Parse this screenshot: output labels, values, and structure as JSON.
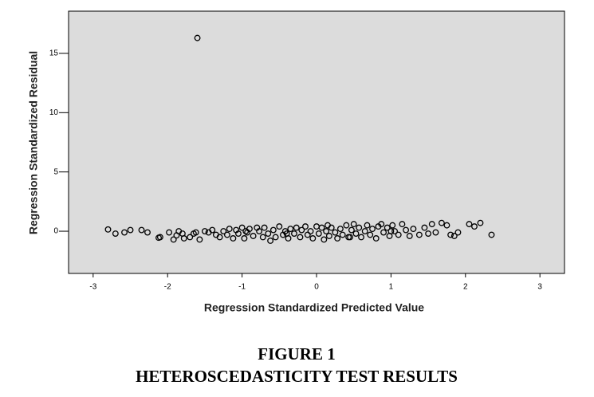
{
  "chart_data": {
    "type": "scatter",
    "x_label": "Regression Standardized Predicted Value",
    "y_label": "Regression Standardized Residual",
    "figure_label": "FIGURE 1",
    "caption": "HETEROSCEDASTICITY TEST RESULTS",
    "xlim": [
      -3.33,
      3.33
    ],
    "ylim": [
      -3.56,
      18.56
    ],
    "xticks": [
      -3,
      -2,
      -1,
      0,
      1,
      2,
      3
    ],
    "yticks": [
      0,
      5,
      10,
      15
    ],
    "color": "#000000",
    "background": "#dcdcdc",
    "x": [
      -2.8,
      -2.7,
      -2.58,
      -2.5,
      -2.35,
      -2.27,
      -2.12,
      -2.1,
      -1.98,
      -1.92,
      -1.88,
      -1.85,
      -1.8,
      -1.78,
      -1.7,
      -1.65,
      -1.62,
      -1.6,
      -1.57,
      -1.5,
      -1.45,
      -1.4,
      -1.35,
      -1.3,
      -1.25,
      -1.2,
      -1.17,
      -1.12,
      -1.08,
      -1.05,
      -1.0,
      -0.97,
      -0.93,
      -0.9,
      -0.85,
      -0.8,
      -0.77,
      -0.72,
      -0.7,
      -0.65,
      -0.62,
      -0.58,
      -0.55,
      -0.5,
      -0.45,
      -0.42,
      -0.38,
      -0.35,
      -0.3,
      -0.27,
      -0.22,
      -0.2,
      -0.15,
      -0.12,
      -0.08,
      -0.05,
      0.0,
      0.03,
      0.07,
      0.1,
      0.13,
      0.17,
      0.2,
      0.25,
      0.28,
      0.32,
      0.35,
      0.4,
      0.43,
      0.47,
      0.5,
      0.53,
      0.57,
      0.6,
      0.65,
      0.68,
      0.72,
      0.75,
      0.8,
      0.83,
      0.87,
      0.9,
      0.95,
      0.98,
      1.02,
      1.05,
      1.1,
      1.15,
      1.2,
      1.25,
      1.3,
      1.38,
      1.45,
      1.5,
      1.55,
      1.6,
      1.68,
      1.75,
      1.8,
      1.85,
      1.9,
      2.05,
      2.12,
      2.2,
      2.35,
      -0.4,
      0.15,
      0.45,
      -0.95,
      1.0
    ],
    "values": [
      0.15,
      -0.2,
      -0.1,
      0.1,
      0.1,
      -0.1,
      -0.55,
      -0.5,
      -0.1,
      -0.7,
      -0.35,
      0.0,
      -0.2,
      -0.6,
      -0.5,
      -0.2,
      -0.1,
      16.3,
      -0.7,
      0.0,
      -0.1,
      0.1,
      -0.3,
      -0.5,
      0.0,
      -0.3,
      0.2,
      -0.6,
      0.1,
      -0.2,
      0.3,
      -0.6,
      -0.1,
      0.2,
      -0.4,
      0.3,
      0.0,
      -0.5,
      0.3,
      -0.2,
      -0.8,
      0.1,
      -0.5,
      0.4,
      -0.3,
      0.0,
      -0.6,
      0.2,
      -0.2,
      0.3,
      -0.5,
      0.1,
      0.4,
      -0.3,
      0.0,
      -0.6,
      0.4,
      -0.2,
      0.3,
      -0.7,
      0.0,
      -0.4,
      0.3,
      -0.1,
      -0.6,
      0.2,
      -0.3,
      0.5,
      -0.5,
      0.1,
      0.6,
      -0.2,
      0.3,
      -0.5,
      0.0,
      0.5,
      -0.3,
      0.2,
      -0.6,
      0.4,
      0.6,
      -0.1,
      0.3,
      -0.4,
      0.5,
      0.0,
      -0.3,
      0.6,
      0.1,
      -0.4,
      0.2,
      -0.3,
      0.3,
      -0.2,
      0.6,
      -0.1,
      0.7,
      0.5,
      -0.3,
      -0.4,
      -0.1,
      0.6,
      0.4,
      0.7,
      -0.3,
      -0.2,
      0.5,
      -0.5,
      0.0,
      0.0
    ]
  }
}
